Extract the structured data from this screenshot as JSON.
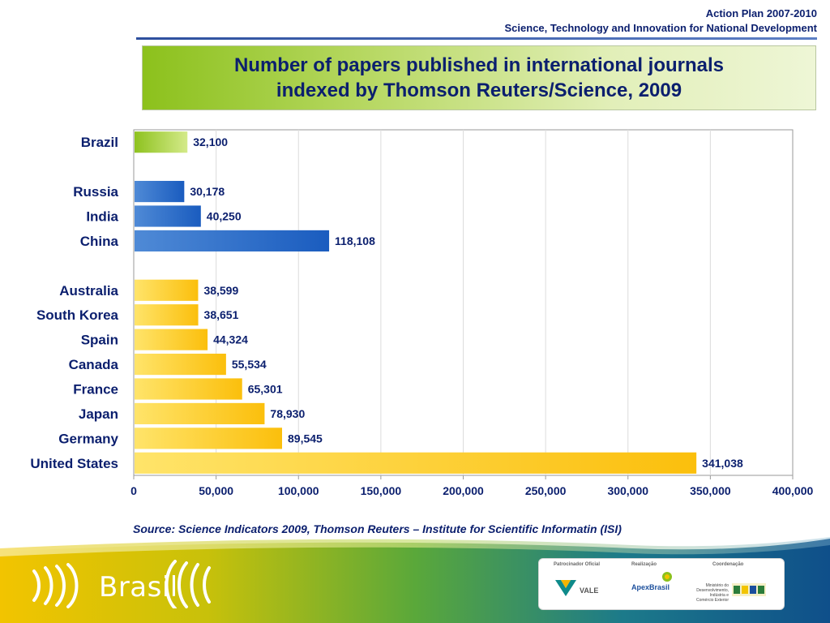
{
  "header": {
    "line1": "Action Plan 2007-2010",
    "line2": "Science, Technology and Innovation for National Development"
  },
  "title": {
    "line1": "Number of papers published in international journals",
    "line2": "indexed by Thomson Reuters/Science, 2009"
  },
  "source": "Source: Science Indicators 2009, Thomson Reuters – Institute for Scientific Informatin (ISI)",
  "chart_data": {
    "type": "bar",
    "orientation": "horizontal",
    "title": "Number of papers published in international journals indexed by Thomson Reuters/Science, 2009",
    "xlim": [
      0,
      400000
    ],
    "xticks": [
      0,
      50000,
      100000,
      150000,
      200000,
      250000,
      300000,
      350000,
      400000
    ],
    "xtick_labels": [
      "0",
      "50,000",
      "100,000",
      "150,000",
      "200,000",
      "250,000",
      "300,000",
      "350,000",
      "400,000"
    ],
    "grid": "vertical",
    "categories": [
      "Brazil",
      "",
      "Russia",
      "India",
      "China",
      "",
      "Australia",
      "South Korea",
      "Spain",
      "Canada",
      "France",
      "Japan",
      "Germany",
      "United States"
    ],
    "values": [
      32100,
      null,
      30178,
      40250,
      118108,
      null,
      38599,
      38651,
      44324,
      55534,
      65301,
      78930,
      89545,
      341038
    ],
    "value_labels": [
      "32,100",
      "",
      "30,178",
      "40,250",
      "118,108",
      "",
      "38,599",
      "38,651",
      "44,324",
      "55,534",
      "65,301",
      "78,930",
      "89,545",
      "341,038"
    ],
    "groups": [
      "green",
      "",
      "blue",
      "blue",
      "blue",
      "",
      "yellow",
      "yellow",
      "yellow",
      "yellow",
      "yellow",
      "yellow",
      "yellow",
      "yellow"
    ],
    "group_colors": {
      "green": [
        "#8ec21f",
        "#d4ea8a"
      ],
      "blue": [
        "#4f8ad6",
        "#1a5cbf"
      ],
      "yellow": [
        "#ffe46a",
        "#fbbf0c"
      ]
    },
    "label_color": "#0b1f6e"
  },
  "footer": {
    "brand": "Brasil",
    "sponsor_label": "Patrocinador Oficial",
    "realization_label": "Realização",
    "coordination_label": "Coordenação",
    "vale": "VALE",
    "apex": "ApexBrasil",
    "ministry": "Ministério do Desenvolvimento, Indústria e Comércio Exterior"
  }
}
